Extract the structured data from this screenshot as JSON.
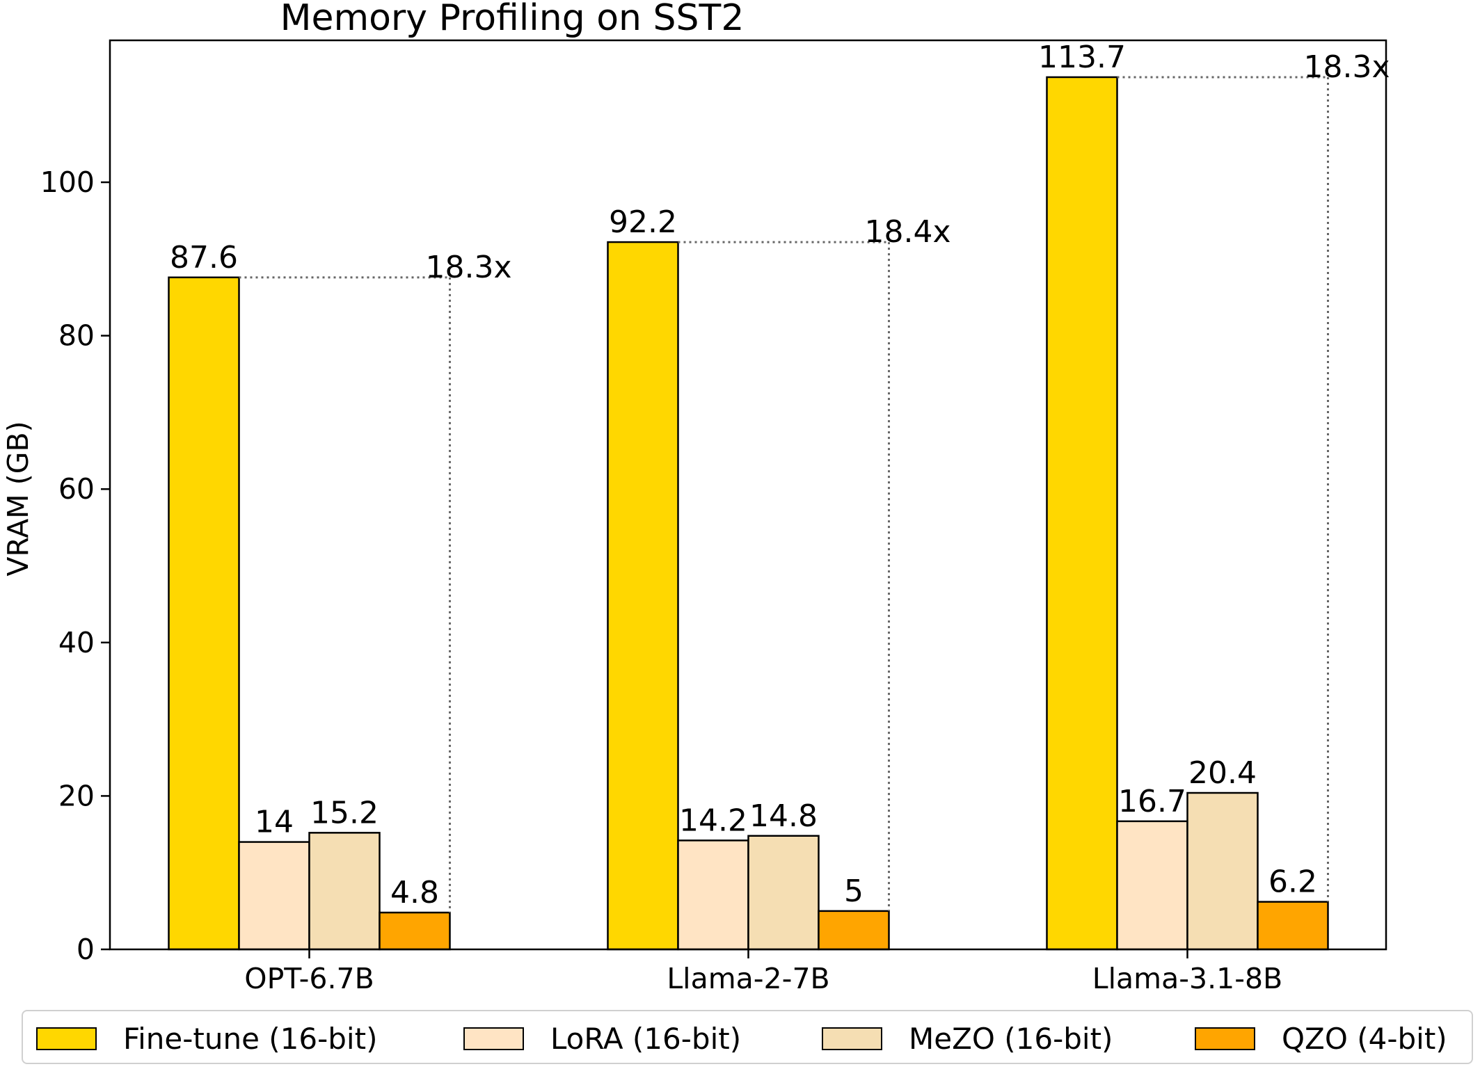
{
  "chart_data": {
    "type": "bar",
    "title": "Memory Profiling on SST2",
    "xlabel": "",
    "ylabel": "VRAM (GB)",
    "ylim": [
      0,
      118.5
    ],
    "yticks": [
      0,
      20,
      40,
      60,
      80,
      100
    ],
    "categories": [
      "OPT-6.7B",
      "Llama-2-7B",
      "Llama-3.1-8B"
    ],
    "series": [
      {
        "name": "Fine-tune (16-bit)",
        "color": "#FFD700",
        "values": [
          87.6,
          92.2,
          113.7
        ],
        "labels": [
          "87.6",
          "92.2",
          "113.7"
        ]
      },
      {
        "name": "LoRA (16-bit)",
        "color": "#FFE4C4",
        "values": [
          14,
          14.2,
          16.7
        ],
        "labels": [
          "14",
          "14.2",
          "16.7"
        ]
      },
      {
        "name": "MeZO (16-bit)",
        "color": "#F5DEB3",
        "values": [
          15.2,
          14.8,
          20.4
        ],
        "labels": [
          "15.2",
          "14.8",
          "20.4"
        ]
      },
      {
        "name": "QZO (4-bit)",
        "color": "#FFA500",
        "values": [
          4.8,
          5,
          6.2
        ],
        "labels": [
          "4.8",
          "5",
          "6.2"
        ]
      }
    ],
    "ratios": [
      "18.3x",
      "18.4x",
      "18.3x"
    ],
    "legend_position": "bottom"
  }
}
